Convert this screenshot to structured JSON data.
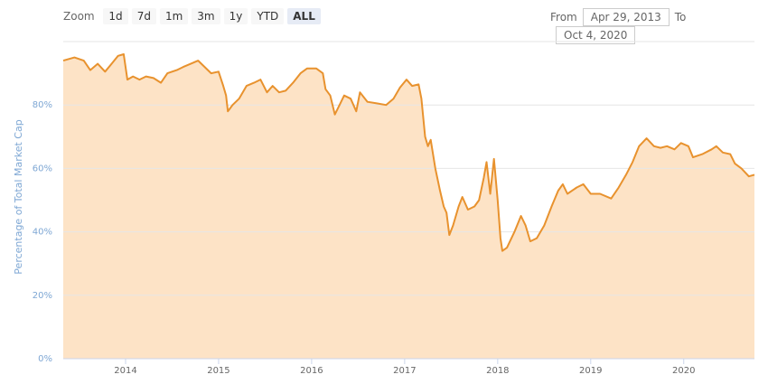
{
  "zoom": {
    "label": "Zoom",
    "buttons": [
      "1d",
      "7d",
      "1m",
      "3m",
      "1y",
      "YTD",
      "ALL"
    ],
    "selected": 6
  },
  "range": {
    "from_label": "From",
    "from": "Apr 29, 2013",
    "to_label": "To",
    "to": "Oct 4, 2020"
  },
  "chart_data": {
    "type": "area",
    "y_label": "Percentage of Total Market Cap",
    "color": "#e8922e",
    "fill": "#fde3c6",
    "xlim": [
      2013.33,
      2020.76
    ],
    "xticks": [
      2014,
      2015,
      2016,
      2017,
      2018,
      2019,
      2020
    ],
    "ylim": [
      0,
      100
    ],
    "yticks": [
      {
        "value": 0,
        "label": "0%"
      },
      {
        "value": 20,
        "label": "20%"
      },
      {
        "value": 40,
        "label": "40%"
      },
      {
        "value": 60,
        "label": "60%"
      },
      {
        "value": 80,
        "label": "80%"
      }
    ],
    "grid": true,
    "x": [
      2013.33,
      2013.45,
      2013.55,
      2013.62,
      2013.7,
      2013.78,
      2013.85,
      2013.92,
      2013.98,
      2014.02,
      2014.08,
      2014.15,
      2014.22,
      2014.3,
      2014.38,
      2014.45,
      2014.55,
      2014.62,
      2014.7,
      2014.78,
      2014.85,
      2014.92,
      2015.0,
      2015.05,
      2015.08,
      2015.1,
      2015.15,
      2015.22,
      2015.3,
      2015.38,
      2015.45,
      2015.52,
      2015.58,
      2015.65,
      2015.72,
      2015.8,
      2015.88,
      2015.95,
      2016.05,
      2016.12,
      2016.15,
      2016.2,
      2016.25,
      2016.3,
      2016.35,
      2016.42,
      2016.48,
      2016.52,
      2016.6,
      2016.7,
      2016.8,
      2016.88,
      2016.95,
      2017.02,
      2017.08,
      2017.15,
      2017.18,
      2017.22,
      2017.25,
      2017.28,
      2017.33,
      2017.38,
      2017.42,
      2017.45,
      2017.48,
      2017.52,
      2017.58,
      2017.62,
      2017.68,
      2017.75,
      2017.8,
      2017.85,
      2017.88,
      2017.92,
      2017.96,
      2018.0,
      2018.03,
      2018.05,
      2018.1,
      2018.18,
      2018.25,
      2018.3,
      2018.35,
      2018.42,
      2018.5,
      2018.58,
      2018.65,
      2018.7,
      2018.75,
      2018.85,
      2018.92,
      2019.0,
      2019.1,
      2019.22,
      2019.3,
      2019.38,
      2019.45,
      2019.52,
      2019.6,
      2019.68,
      2019.75,
      2019.82,
      2019.9,
      2019.97,
      2020.05,
      2020.1,
      2020.2,
      2020.3,
      2020.35,
      2020.42,
      2020.5,
      2020.55,
      2020.62,
      2020.7,
      2020.76
    ],
    "values": [
      94,
      95,
      94,
      91,
      93,
      90.5,
      93,
      95.5,
      96,
      88,
      89,
      88,
      89,
      88.5,
      87,
      90,
      91,
      92,
      93,
      94,
      92,
      90,
      90.5,
      86,
      83,
      78,
      80,
      82,
      86,
      87,
      88,
      84,
      86,
      84,
      84.5,
      87,
      90,
      91.5,
      91.5,
      90,
      85,
      83,
      77,
      80,
      83,
      82,
      78,
      84,
      81,
      80.5,
      80,
      82,
      85.5,
      88,
      86,
      86.5,
      82,
      70,
      67,
      69,
      60,
      53,
      48,
      46,
      39,
      42,
      48,
      51,
      47,
      48,
      50,
      57,
      62,
      52,
      63,
      50,
      38,
      34,
      35,
      40,
      45,
      42,
      37,
      38,
      42,
      48,
      53,
      55,
      52,
      54,
      55,
      52,
      52,
      50.5,
      54,
      58,
      62,
      67,
      69.5,
      67,
      66.5,
      67,
      66,
      68,
      67,
      63.5,
      64.5,
      66,
      67,
      65,
      64.5,
      61.5,
      60,
      57.5,
      58
    ]
  }
}
